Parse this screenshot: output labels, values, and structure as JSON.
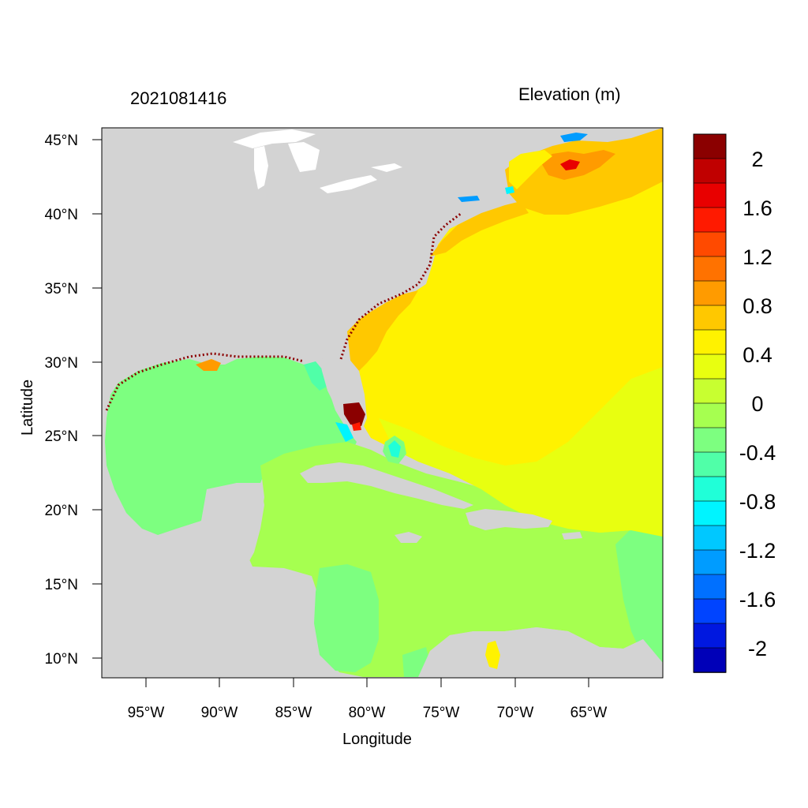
{
  "title_left": "2021081416",
  "title_right": "Elevation (m)",
  "x_axis_label": "Longitude",
  "y_axis_label": "Latitude",
  "x_ticks": [
    "95°W",
    "90°W",
    "85°W",
    "80°W",
    "75°W",
    "70°W",
    "65°W"
  ],
  "y_ticks": [
    "45°N",
    "40°N",
    "35°N",
    "30°N",
    "25°N",
    "20°N",
    "15°N",
    "10°N"
  ],
  "colorbar": {
    "labels": [
      "2",
      "1.6",
      "1.2",
      "0.8",
      "0.4",
      "0",
      "-0.4",
      "-0.8",
      "-1.2",
      "-1.6",
      "-2"
    ],
    "colors": [
      "#8b0000",
      "#c00000",
      "#e80000",
      "#ff1a00",
      "#ff4a00",
      "#ff7200",
      "#ff9b00",
      "#ffc800",
      "#fff200",
      "#e8ff10",
      "#c8ff30",
      "#a6ff50",
      "#7dff80",
      "#50ffa8",
      "#20ffd8",
      "#00f4ff",
      "#00c8ff",
      "#009cff",
      "#0070ff",
      "#0044ff",
      "#0018e0",
      "#0000b8"
    ]
  },
  "colors": {
    "land": "#d3d3d3",
    "water_default": "#ffffff"
  }
}
